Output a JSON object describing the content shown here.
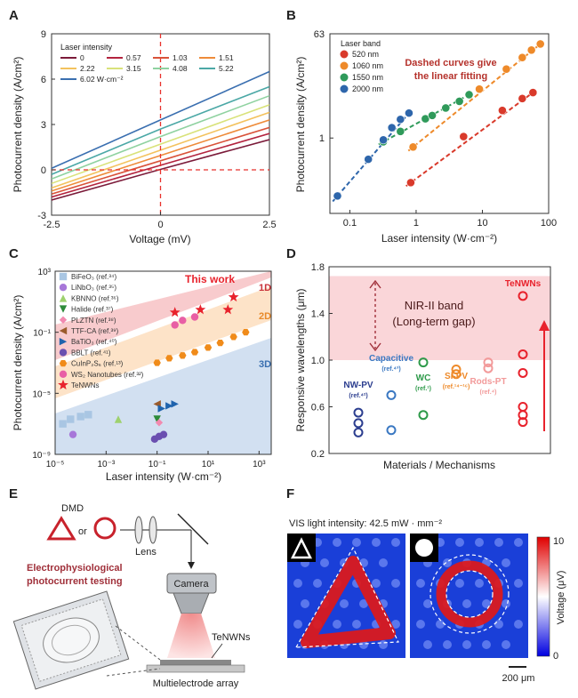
{
  "panel_letters": {
    "a": "A",
    "b": "B",
    "c": "C",
    "d": "D",
    "e": "E",
    "f": "F"
  },
  "colors": {
    "red_dash": "#e8322c",
    "axis": "#333333",
    "pink_band": "#f9c9cc",
    "orange_band": "#fde0c4",
    "blue_band": "#c9d9ef"
  },
  "chart_data": [
    {
      "panel": "A",
      "type": "line",
      "xlabel": "Voltage (mV)",
      "ylabel": "Photocurrent density (A/cm²)",
      "xlim": [
        -2.5,
        2.5
      ],
      "ylim": [
        -3,
        9
      ],
      "xticks": [
        "-2.5",
        "0",
        "2.5"
      ],
      "yticks": [
        "-3",
        "0",
        "3",
        "6",
        "9"
      ],
      "legend_title": "Laser intensity",
      "series": [
        {
          "name": "0",
          "color": "#7b1b3a",
          "y_at_neg2_5": -2.0,
          "y_at_0": 0.03,
          "y_at_2_5": 2.0
        },
        {
          "name": "0.57",
          "color": "#b3243f",
          "y_at_neg2_5": -1.8,
          "y_at_0": 0.3,
          "y_at_2_5": 2.4
        },
        {
          "name": "1.03",
          "color": "#d9533a",
          "y_at_neg2_5": -1.6,
          "y_at_0": 0.6,
          "y_at_2_5": 2.8
        },
        {
          "name": "1.51",
          "color": "#ee8b3a",
          "y_at_neg2_5": -1.4,
          "y_at_0": 0.95,
          "y_at_2_5": 3.3
        },
        {
          "name": "2.22",
          "color": "#f3c25d",
          "y_at_neg2_5": -1.2,
          "y_at_0": 1.3,
          "y_at_2_5": 3.8
        },
        {
          "name": "3.15",
          "color": "#d9e27a",
          "y_at_neg2_5": -0.9,
          "y_at_0": 1.7,
          "y_at_2_5": 4.3
        },
        {
          "name": "4.08",
          "color": "#8fd2a0",
          "y_at_neg2_5": -0.6,
          "y_at_0": 2.2,
          "y_at_2_5": 4.9
        },
        {
          "name": "5.22",
          "color": "#4ba8a6",
          "y_at_neg2_5": -0.3,
          "y_at_0": 2.7,
          "y_at_2_5": 5.5
        },
        {
          "name": "6.02 W·cm⁻²",
          "color": "#3a6fb0",
          "y_at_neg2_5": 0.1,
          "y_at_0": 3.3,
          "y_at_2_5": 6.5
        }
      ]
    },
    {
      "panel": "B",
      "type": "scatter",
      "xlabel": "Laser intensity (W·cm⁻²)",
      "ylabel": "Photocurrent density (A/cm²)",
      "xscale": "log",
      "yscale": "log",
      "xlim": [
        0.05,
        100
      ],
      "ylim": [
        0.05,
        63
      ],
      "xticks": [
        "0.1",
        "1",
        "10",
        "100"
      ],
      "yticks": [
        "1",
        "63"
      ],
      "legend_title": "Laser band",
      "annotation": "Dashed curves give the linear fitting",
      "series": [
        {
          "name": "520 nm",
          "color": "#d93a2b",
          "x": [
            0.83,
            5.2,
            20,
            40,
            58
          ],
          "y": [
            0.17,
            1.06,
            3.0,
            4.8,
            6.1
          ]
        },
        {
          "name": "1060 nm",
          "color": "#ee8a2a",
          "x": [
            0.9,
            9,
            23,
            40,
            55,
            75
          ],
          "y": [
            0.7,
            7.0,
            15.5,
            24.5,
            33,
            42
          ]
        },
        {
          "name": "1550 nm",
          "color": "#2f9a5a",
          "x": [
            0.32,
            0.58,
            1.38,
            1.75,
            2.8,
            4.5,
            6.3
          ],
          "y": [
            0.86,
            1.3,
            2.15,
            2.45,
            3.3,
            4.3,
            5.6
          ]
        },
        {
          "name": "2000 nm",
          "color": "#2e66ab",
          "x": [
            0.065,
            0.19,
            0.32,
            0.43,
            0.58,
            0.78
          ],
          "y": [
            0.1,
            0.43,
            0.93,
            1.51,
            2.1,
            2.7
          ]
        }
      ]
    },
    {
      "panel": "C",
      "type": "scatter",
      "xlabel": "Laser intensity (W·cm⁻²)",
      "ylabel": "Photocurrent density (A/cm²)",
      "xscale": "log",
      "yscale": "log",
      "xticks": [
        "10⁻⁵",
        "10⁻³",
        "10⁻¹",
        "10¹",
        "10³"
      ],
      "yticks": [
        "10⁻⁹",
        "10⁻⁵",
        "10⁻¹",
        "10³"
      ],
      "band_labels": [
        "1D",
        "2D",
        "3D"
      ],
      "annotation": "This work",
      "series": [
        {
          "name": "BiFeO₃ (ref.³⁴)",
          "marker": "square",
          "color": "#a9c6e3",
          "x": [
            2e-05,
            4e-05,
            0.0001,
            0.0002
          ],
          "y": [
            1e-07,
            2e-07,
            3e-07,
            4e-07
          ]
        },
        {
          "name": "LiNbO₃ (ref.³⁵)",
          "marker": "circle",
          "color": "#a777d9",
          "x": [
            5e-05
          ],
          "y": [
            2e-08
          ]
        },
        {
          "name": "KBNNO (ref.³⁶)",
          "marker": "triangle",
          "color": "#9ed16e",
          "x": [
            0.003
          ],
          "y": [
            2e-07
          ]
        },
        {
          "name": "Halide (ref.³⁷)",
          "marker": "tri-down",
          "color": "#2e8b3a",
          "x": [
            0.1
          ],
          "y": [
            2e-07
          ]
        },
        {
          "name": "PLZTN (ref.³⁸)",
          "marker": "diamond",
          "color": "#f28ab0",
          "x": [
            0.12
          ],
          "y": [
            1.2e-07
          ]
        },
        {
          "name": "TTF-CA (ref.³⁹)",
          "marker": "tri-left",
          "color": "#9b5b2b",
          "x": [
            0.1
          ],
          "y": [
            2e-06
          ]
        },
        {
          "name": "BaTiO₃ (ref.⁴⁰)",
          "marker": "tri-right",
          "color": "#1f63ad",
          "x": [
            0.15,
            0.3,
            0.5
          ],
          "y": [
            1e-06,
            1.5e-06,
            2e-06
          ]
        },
        {
          "name": "BBLT (ref.⁴¹)",
          "marker": "circle",
          "color": "#6a4fb0",
          "x": [
            0.08,
            0.12,
            0.18
          ],
          "y": [
            1e-08,
            1.5e-08,
            2e-08
          ]
        },
        {
          "name": "CuInP₂S₆ (ref.¹³)",
          "marker": "hexagon",
          "color": "#f08b1a",
          "x": [
            0.1,
            0.3,
            1,
            3,
            10,
            30,
            100,
            300
          ],
          "y": [
            0.001,
            0.002,
            0.003,
            0.005,
            0.01,
            0.02,
            0.05,
            0.1
          ]
        },
        {
          "name": "WS₂ Nanotubes (ref.³²)",
          "marker": "circle",
          "color": "#e85fa5",
          "x": [
            0.5,
            1,
            3
          ],
          "y": [
            0.3,
            0.6,
            1
          ]
        },
        {
          "name": "TeNWNs",
          "marker": "star",
          "color": "#e8222c",
          "x": [
            0.5,
            5,
            60,
            100
          ],
          "y": [
            2,
            3,
            3,
            20
          ]
        }
      ]
    },
    {
      "panel": "D",
      "type": "scatter",
      "xlabel": "Materials / Mechanisms",
      "ylabel": "Responsive wavelengths (μm)",
      "ylim": [
        0.2,
        1.8
      ],
      "yticks": [
        "0.2",
        "0.6",
        "1.0",
        "1.4",
        "1.8"
      ],
      "band_title": "NIR-II band",
      "band_subtitle": "(Long-term gap)",
      "categories": [
        "NW-PV",
        "Capacitive",
        "WC",
        "Si-PV",
        "Rods-PT",
        "TeNWNs"
      ],
      "category_refs": [
        "(ref.⁴²)",
        "(ref.⁴³)",
        "(ref.¹)",
        "(ref.¹⁴⁻¹⁶)",
        "(ref.⁴)",
        ""
      ],
      "series": [
        {
          "name": "NW-PV",
          "color": "#2c3e8f",
          "values": [
            0.38,
            0.46,
            0.55
          ]
        },
        {
          "name": "Capacitive",
          "color": "#3a78c2",
          "values": [
            0.4,
            0.7
          ]
        },
        {
          "name": "WC",
          "color": "#2e9a4a",
          "values": [
            0.53,
            0.98
          ]
        },
        {
          "name": "Si-PV",
          "color": "#ee8a2a",
          "values": [
            0.88,
            0.92
          ]
        },
        {
          "name": "Rods-PT",
          "color": "#f29a9a",
          "values": [
            0.93,
            0.98
          ]
        },
        {
          "name": "TeNWNs",
          "color": "#e8222c",
          "values": [
            0.47,
            0.53,
            0.6,
            0.89,
            1.05,
            1.55
          ]
        }
      ]
    }
  ],
  "panel_e": {
    "dmd": "DMD",
    "or": "or",
    "lens": "Lens",
    "testing_line1": "Electrophysiological",
    "testing_line2": "photocurrent testing",
    "camera": "Camera",
    "tenwns": "TeNWNs",
    "array": "Multielectrode array"
  },
  "panel_f": {
    "intensity": "VIS light intensity: 42.5 mW · mm⁻²",
    "colorbar_label": "Voltage (μV)",
    "colorbar_max": "10",
    "colorbar_min": "0",
    "scalebar": "200 μm"
  }
}
